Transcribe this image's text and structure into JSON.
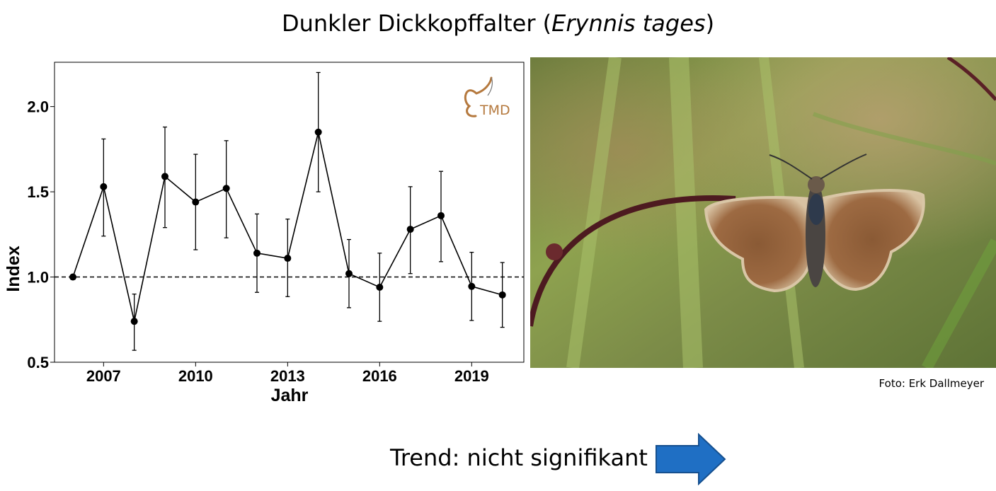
{
  "title": {
    "common_name": "Dunkler Dickkopffalter",
    "open_paren": "(",
    "latin_name": "Erynnis tages",
    "close_paren": ")"
  },
  "logo_text": "TMD",
  "photo_credit": "Foto: Erk Dallmeyer",
  "trend_text": "Trend: nicht signifikant",
  "colors": {
    "arrow_fill": "#1f6fc4",
    "arrow_stroke": "#16508f",
    "logo": "#b5793e"
  },
  "chart_data": {
    "type": "line",
    "xlabel": "Jahr",
    "ylabel": "Index",
    "xlim": [
      2005.4,
      2020.7
    ],
    "ylim": [
      0.5,
      2.26
    ],
    "xticks": [
      2007,
      2010,
      2013,
      2016,
      2019
    ],
    "yticks": [
      0.5,
      1.0,
      1.5,
      2.0
    ],
    "ytick_labels": [
      "0.5",
      "1.0",
      "1.5",
      "2.0"
    ],
    "reference_line": 1.0,
    "grid": false,
    "x": [
      2006,
      2007,
      2008,
      2009,
      2010,
      2011,
      2012,
      2013,
      2014,
      2015,
      2016,
      2017,
      2018,
      2019,
      2020
    ],
    "values": [
      1.0,
      1.53,
      0.74,
      1.59,
      1.44,
      1.52,
      1.14,
      1.11,
      1.85,
      1.02,
      0.94,
      1.28,
      1.36,
      0.945,
      0.895
    ],
    "lower": [
      null,
      1.24,
      0.57,
      1.29,
      1.16,
      1.23,
      0.91,
      0.885,
      1.5,
      0.82,
      0.74,
      1.02,
      1.09,
      0.745,
      0.705
    ],
    "upper": [
      null,
      1.81,
      0.9,
      1.88,
      1.72,
      1.8,
      1.37,
      1.34,
      2.2,
      1.22,
      1.14,
      1.53,
      1.62,
      1.145,
      1.085
    ]
  }
}
